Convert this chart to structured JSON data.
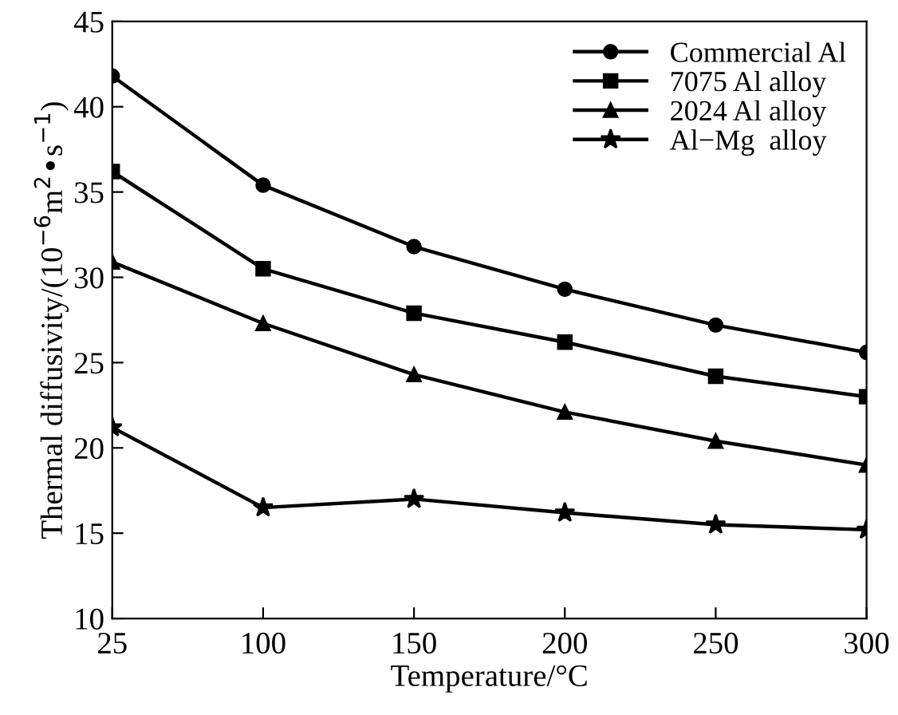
{
  "chart_data": {
    "type": "line",
    "xlabel": "Temperature/°C",
    "ylabel": "Thermal diffusivity/(10$^{−6}$m$^{2}$•s$^{−1}$)",
    "categories": [
      "25",
      "100",
      "150",
      "200",
      "250",
      "300"
    ],
    "series": [
      {
        "name": "Commercial Al",
        "color": "#000000",
        "marker": "circle",
        "values": [
          41.8,
          35.4,
          31.8,
          29.3,
          27.2,
          25.6
        ]
      },
      {
        "name": "7075 Al alloy",
        "color": "#000000",
        "marker": "square",
        "values": [
          36.2,
          30.5,
          27.9,
          26.2,
          24.2,
          23.0
        ]
      },
      {
        "name": "2024 Al alloy",
        "color": "#000000",
        "marker": "triangle",
        "values": [
          30.9,
          27.3,
          24.3,
          22.1,
          20.4,
          19.0
        ]
      },
      {
        "name": "Al−Mg  alloy",
        "color": "#000000",
        "marker": "star",
        "values": [
          21.2,
          16.5,
          17.0,
          16.2,
          15.5,
          15.2
        ]
      }
    ],
    "ylim": [
      10,
      45
    ],
    "yticks": [
      10,
      15,
      20,
      25,
      30,
      35,
      40,
      45
    ],
    "grid": false,
    "legend": "top right",
    "line_style": "solid"
  }
}
